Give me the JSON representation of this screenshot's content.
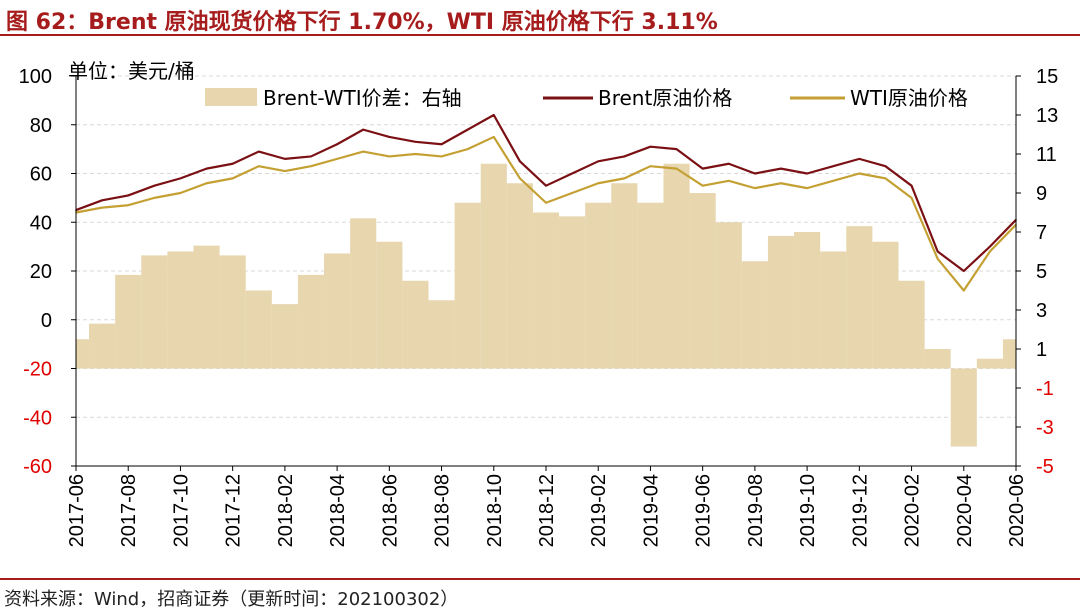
{
  "figure": {
    "title": "图 62：Brent 原油现货价格下行 1.70%，WTI 原油价格下行 3.11%",
    "source": "资料来源：Wind，招商证券（更新时间：202100302）"
  },
  "colors": {
    "brent": "#7b1014",
    "wti": "#c4a032",
    "spread": "#e7d6ae",
    "negative_tick": "#e00000",
    "title": "#a61c1c"
  },
  "chart_data": {
    "type": "line",
    "unit_label": "单位：美元/桶",
    "legend": [
      "Brent-WTI价差：右轴",
      "Brent原油价格",
      "WTI原油价格"
    ],
    "legend_position": "top",
    "grid": true,
    "left_axis": {
      "ylim": [
        -60,
        100
      ],
      "ticks": [
        100,
        80,
        60,
        40,
        20,
        0,
        -20,
        -40,
        -60
      ]
    },
    "right_axis": {
      "ylim": [
        -5,
        15
      ],
      "ticks": [
        15,
        13,
        11,
        9,
        7,
        5,
        3,
        1,
        -1,
        -3,
        -5
      ]
    },
    "x_tick_labels": [
      "2017-06",
      "2017-08",
      "2017-10",
      "2017-12",
      "2018-02",
      "2018-04",
      "2018-06",
      "2018-08",
      "2018-10",
      "2018-12",
      "2019-02",
      "2019-04",
      "2019-06",
      "2019-08",
      "2019-10",
      "2019-12",
      "2020-02",
      "2020-04",
      "2020-06"
    ],
    "dates": [
      "2017-06",
      "2017-07",
      "2017-08",
      "2017-09",
      "2017-10",
      "2017-11",
      "2017-12",
      "2018-01",
      "2018-02",
      "2018-03",
      "2018-04",
      "2018-05",
      "2018-06",
      "2018-07",
      "2018-08",
      "2018-09",
      "2018-10",
      "2018-11",
      "2018-12",
      "2019-01",
      "2019-02",
      "2019-03",
      "2019-04",
      "2019-05",
      "2019-06",
      "2019-07",
      "2019-08",
      "2019-09",
      "2019-10",
      "2019-11",
      "2019-12",
      "2020-01",
      "2020-02",
      "2020-03",
      "2020-04",
      "2020-05",
      "2020-06"
    ],
    "series": [
      {
        "name": "Brent-WTI价差：右轴",
        "axis": "right",
        "kind": "area",
        "values": [
          1.5,
          2.3,
          4.8,
          5.8,
          6.0,
          6.3,
          5.8,
          4.0,
          3.3,
          4.8,
          5.9,
          7.7,
          6.5,
          4.5,
          3.5,
          8.5,
          10.5,
          9.5,
          8.0,
          7.8,
          8.5,
          9.5,
          8.5,
          10.5,
          9.0,
          7.5,
          5.5,
          6.8,
          7.0,
          6.0,
          7.3,
          6.5,
          4.5,
          1.0,
          -4.0,
          0.5,
          1.5
        ]
      },
      {
        "name": "Brent原油价格",
        "axis": "left",
        "kind": "line",
        "values": [
          45,
          49,
          51,
          55,
          58,
          62,
          64,
          69,
          66,
          67,
          72,
          78,
          75,
          73,
          72,
          78,
          84,
          65,
          55,
          60,
          65,
          67,
          71,
          70,
          62,
          64,
          60,
          62,
          60,
          63,
          66,
          63,
          55,
          28,
          20,
          30,
          41
        ]
      },
      {
        "name": "WTI原油价格",
        "axis": "left",
        "kind": "line",
        "values": [
          44,
          46,
          47,
          50,
          52,
          56,
          58,
          63,
          61,
          63,
          66,
          69,
          67,
          68,
          67,
          70,
          75,
          58,
          48,
          52,
          56,
          58,
          63,
          62,
          55,
          57,
          54,
          56,
          54,
          57,
          60,
          58,
          50,
          25,
          12,
          28,
          39
        ]
      }
    ]
  }
}
